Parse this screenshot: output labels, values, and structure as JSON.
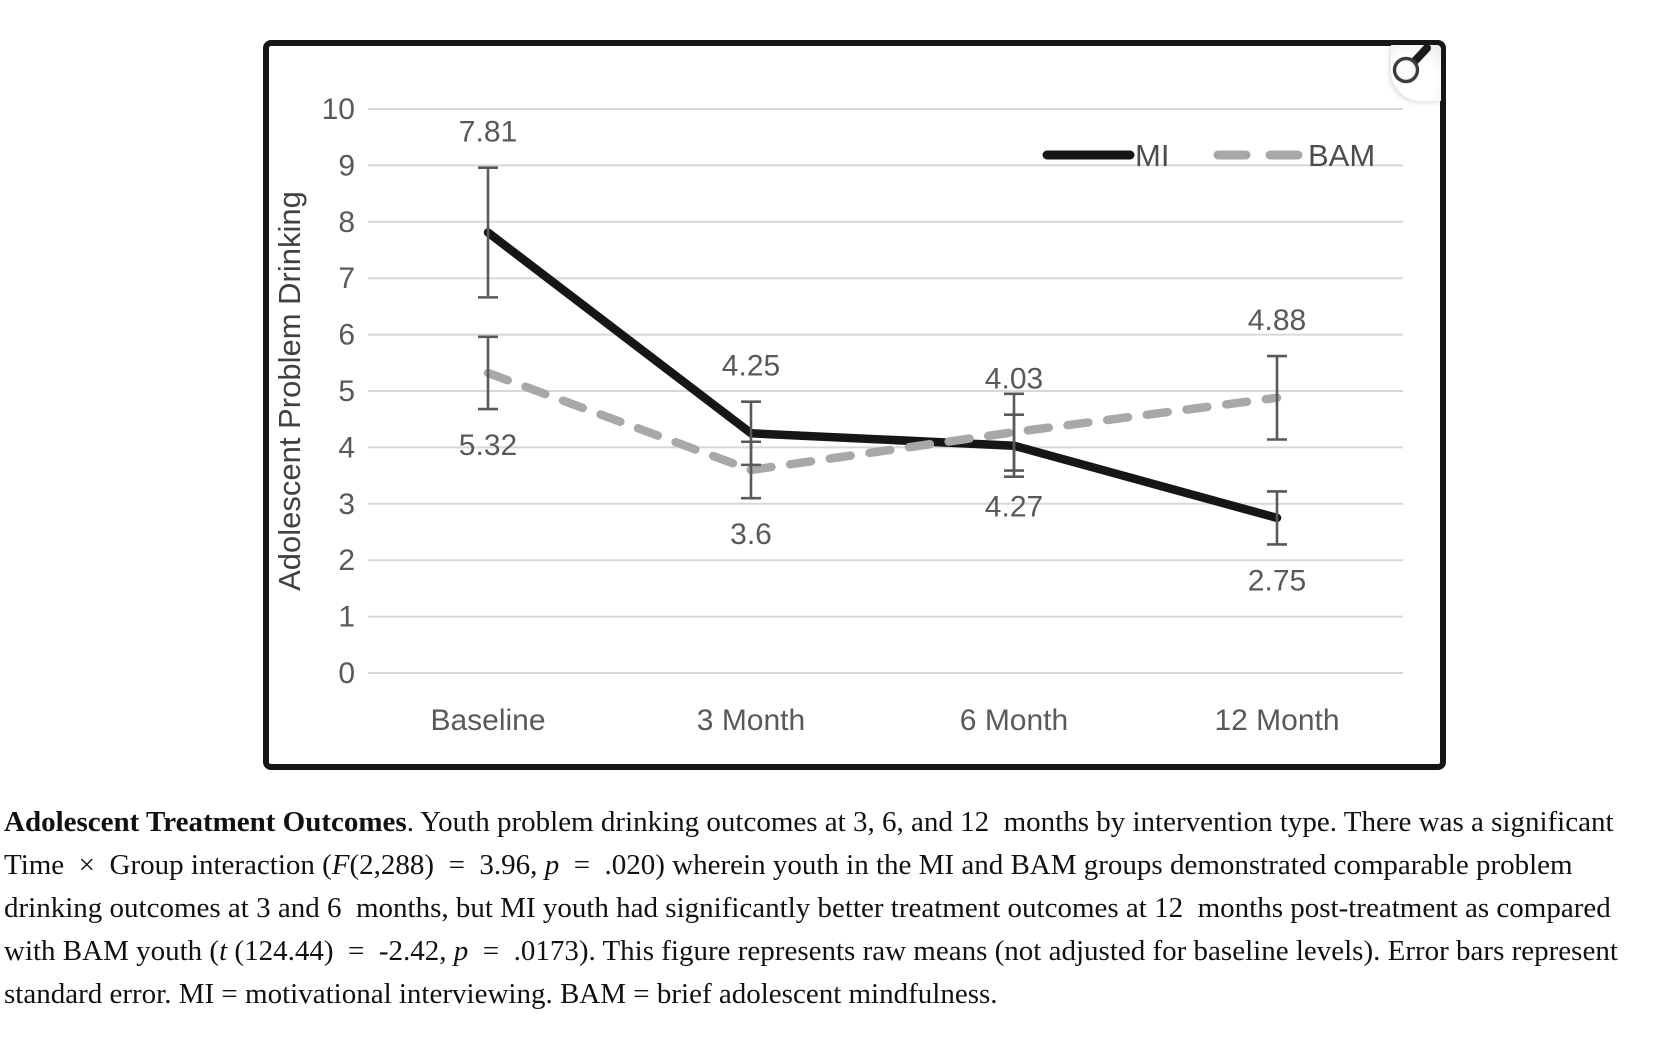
{
  "figure": {
    "zoom_button": {
      "icon": "magnifier",
      "purpose": "enlarge figure"
    }
  },
  "chart_data": {
    "type": "line",
    "title": "",
    "xlabel": "",
    "ylabel": "Adolescent Problem Drinking",
    "categories": [
      "Baseline",
      "3 Month",
      "6 Month",
      "12 Month"
    ],
    "ylim": [
      0,
      10
    ],
    "yticks": [
      0,
      1,
      2,
      3,
      4,
      5,
      6,
      7,
      8,
      9,
      10
    ],
    "grid": true,
    "legend_position": "top-right",
    "error_bars": "standard error",
    "colors": {
      "mi_line": "#161616",
      "bam_line": "#a8a8a8",
      "gridline": "#d8d8d8",
      "tick_label": "#595959",
      "axis_title": "#404040",
      "error_bar": "#595959"
    },
    "series": [
      {
        "name": "MI",
        "style": "solid",
        "color": "#161616",
        "values": [
          7.81,
          4.25,
          4.03,
          2.75
        ],
        "se": [
          1.15,
          0.56,
          0.55,
          0.47
        ],
        "labels": [
          "7.81",
          "4.25",
          "4.03",
          "2.75"
        ],
        "label_side": [
          "above",
          "above",
          "above",
          "below"
        ]
      },
      {
        "name": "BAM",
        "style": "dashed",
        "color": "#a8a8a8",
        "values": [
          5.32,
          3.6,
          4.27,
          4.88
        ],
        "se": [
          0.64,
          0.5,
          0.68,
          0.74
        ],
        "labels": [
          "5.32",
          "3.6",
          "4.27",
          "4.88"
        ],
        "label_side": [
          "below",
          "below",
          "below",
          "above"
        ]
      }
    ]
  },
  "caption": {
    "segments": [
      {
        "text": "Adolescent Treatment Outcomes",
        "bold": true
      },
      {
        "text": ". Youth problem drinking outcomes at 3, 6, and 12  months by intervention type. There was a significant Time  ×  Group interaction ("
      },
      {
        "text": "F",
        "italic": true
      },
      {
        "text": "(2,288)  =  3.96, "
      },
      {
        "text": "p",
        "italic": true
      },
      {
        "text": "  =  .020) wherein youth in the MI and BAM groups demonstrated comparable problem drinking outcomes at 3 and 6  months, but MI youth had significantly better treatment outcomes at 12  months post-treatment as compared with BAM youth ("
      },
      {
        "text": "t",
        "italic": true
      },
      {
        "text": " (124.44)  =  -2.42, "
      },
      {
        "text": "p",
        "italic": true
      },
      {
        "text": "  =  .0173). This figure represents raw means (not adjusted for baseline levels). Error bars represent standard error. MI = motivational interviewing. BAM = brief adolescent mindfulness."
      }
    ]
  }
}
